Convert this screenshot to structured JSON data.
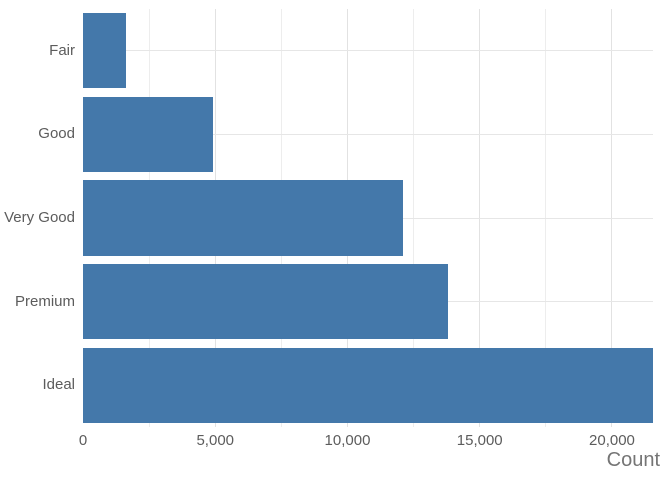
{
  "chart_data": {
    "type": "bar",
    "orientation": "horizontal",
    "title": "",
    "xlabel": "Count",
    "ylabel": "",
    "categories": [
      "Fair",
      "Good",
      "Very Good",
      "Premium",
      "Ideal"
    ],
    "values": [
      1610,
      4906,
      12082,
      13791,
      21551
    ],
    "xlim": [
      0,
      21551
    ],
    "x_major_ticks": [
      0,
      5000,
      10000,
      15000,
      20000
    ],
    "x_major_tick_labels": [
      "0",
      "5,000",
      "10,000",
      "15,000",
      "20,000"
    ],
    "x_minor_ticks": [
      2500,
      7500,
      12500,
      17500
    ],
    "grid": true,
    "legend": false,
    "bar_color": "#4478AA",
    "background_color": "#ffffff",
    "tick_label_color": "#5c5c5c",
    "axis_title_color": "#757575"
  }
}
